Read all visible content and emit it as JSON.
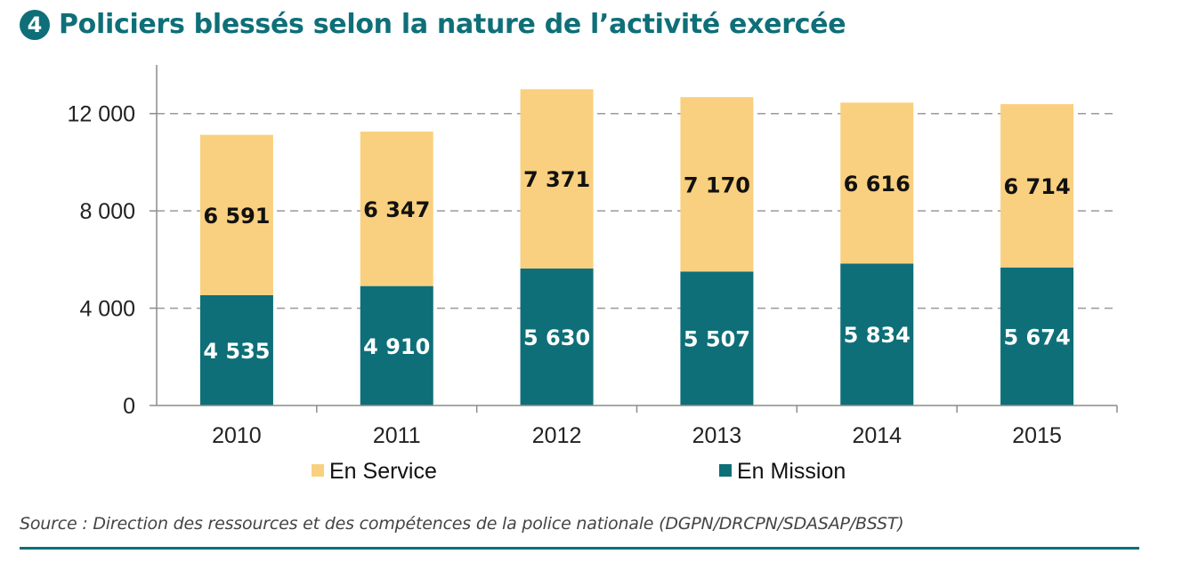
{
  "header": {
    "badge": "4",
    "title": "Policiers blessés selon la nature de l’activité exercée"
  },
  "source": "Source : Direction des ressources et des compétences de la police nationale (DGPN/DRCPN/SDASAP/BSST)",
  "colors": {
    "en_service": "#f9d07f",
    "en_mission": "#0e6f78",
    "accent": "#0e6f78"
  },
  "chart_data": {
    "type": "bar",
    "stacked": true,
    "categories": [
      "2010",
      "2011",
      "2012",
      "2013",
      "2014",
      "2015"
    ],
    "series": [
      {
        "name": "En Mission",
        "values": [
          4535,
          4910,
          5630,
          5507,
          5834,
          5674
        ],
        "labels": [
          "4 535",
          "4 910",
          "5 630",
          "5 507",
          "5 834",
          "5 674"
        ]
      },
      {
        "name": "En Service",
        "values": [
          6591,
          6347,
          7371,
          7170,
          6616,
          6714
        ],
        "labels": [
          "6 591",
          "6 347",
          "7 371",
          "7 170",
          "6 616",
          "6 714"
        ]
      }
    ],
    "yticks": [
      0,
      4000,
      8000,
      12000
    ],
    "ytick_labels": [
      "0",
      "4 000",
      "8 000",
      "12 000"
    ],
    "ylim": [
      0,
      14000
    ],
    "grid": true,
    "legend": [
      {
        "name": "En Service",
        "color": "#f9d07f"
      },
      {
        "name": "En Mission",
        "color": "#0e6f78"
      }
    ],
    "legend_position": "bottom"
  }
}
